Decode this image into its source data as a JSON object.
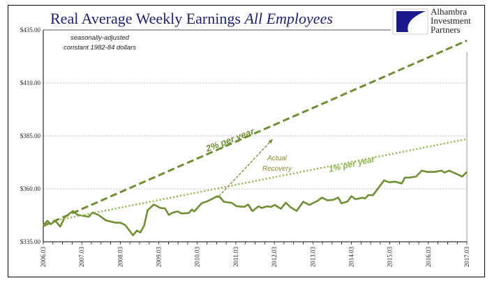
{
  "title": {
    "main": "Real Average Weekly Earnings",
    "italic": "All Employees"
  },
  "logo": {
    "lines": [
      "Alhambra",
      "Investment",
      "Partners"
    ],
    "color": "#1a1a8c"
  },
  "note": {
    "line1": "seasonally-adjusted",
    "line2": "constant 1982-84 dollars"
  },
  "chart_data": {
    "type": "line",
    "ylim": [
      335,
      435
    ],
    "xlim": [
      2006.17,
      2017.17
    ],
    "yticks": [
      "$335.00",
      "$360.00",
      "$385.00",
      "$410.00",
      "$435.00"
    ],
    "ytick_values": [
      335,
      360,
      385,
      410,
      435
    ],
    "xticks": [
      "2006.03",
      "2007.03",
      "2008.03",
      "2009.03",
      "2010.03",
      "2011.03",
      "2012.03",
      "2013.03",
      "2014.03",
      "2015.03",
      "2016.03",
      "2017.03"
    ],
    "grid": true,
    "series": [
      {
        "style": "solid",
        "color": "#6e8f32",
        "x": [
          2006.17,
          2006.28,
          2006.36,
          2006.48,
          2006.61,
          2006.73,
          2006.94,
          2007.06,
          2007.35,
          2007.45,
          2007.6,
          2007.8,
          2008.05,
          2008.17,
          2008.3,
          2008.5,
          2008.6,
          2008.69,
          2008.79,
          2008.88,
          2009.04,
          2009.21,
          2009.33,
          2009.43,
          2009.54,
          2009.66,
          2009.76,
          2009.95,
          2010.03,
          2010.09,
          2010.28,
          2010.4,
          2010.53,
          2010.69,
          2010.77,
          2010.86,
          2011.06,
          2011.19,
          2011.39,
          2011.49,
          2011.6,
          2011.76,
          2011.85,
          2011.97,
          2012.09,
          2012.18,
          2012.34,
          2012.47,
          2012.59,
          2012.75,
          2012.92,
          2013.08,
          2013.29,
          2013.41,
          2013.54,
          2013.7,
          2013.83,
          2013.91,
          2014.07,
          2014.17,
          2014.28,
          2014.45,
          2014.53,
          2014.61,
          2014.73,
          2014.86,
          2015.02,
          2015.15,
          2015.31,
          2015.48,
          2015.56,
          2015.68,
          2015.85,
          2016.0,
          2016.14,
          2016.34,
          2016.51,
          2016.59,
          2016.71,
          2016.88,
          2017.05,
          2017.17
        ],
        "y": [
          342.9,
          344.9,
          343.3,
          344.9,
          342.2,
          346.6,
          349.5,
          347.7,
          346.8,
          348.8,
          347.7,
          345.1,
          344.0,
          344.0,
          342.9,
          338.1,
          340.3,
          339.4,
          342.7,
          349.9,
          352.6,
          351.0,
          350.8,
          347.7,
          348.8,
          349.3,
          348.4,
          348.6,
          350.2,
          349.3,
          353.2,
          353.9,
          355.0,
          356.5,
          355.9,
          353.9,
          353.4,
          351.8,
          351.5,
          352.6,
          349.5,
          351.7,
          351.0,
          351.7,
          351.5,
          352.4,
          350.6,
          353.5,
          351.3,
          349.6,
          353.9,
          352.4,
          354.3,
          355.9,
          354.6,
          354.8,
          355.9,
          353.2,
          354.0,
          356.5,
          355.1,
          355.8,
          355.5,
          357.0,
          357.0,
          360.1,
          364.0,
          363.1,
          363.4,
          362.5,
          365.3,
          365.3,
          365.8,
          368.6,
          368.0,
          368.0,
          368.6,
          367.7,
          368.6,
          367.2,
          365.8,
          368.0
        ]
      },
      {
        "name": "2% per year",
        "style": "dashed",
        "color": "#6e8f32",
        "x": [
          2006.17,
          2017.17
        ],
        "y": [
          342.5,
          430.0
        ],
        "growth": 0.02
      },
      {
        "name": "1% per year",
        "style": "dotted",
        "color": "#8fb848",
        "x": [
          2006.61,
          2017.17
        ],
        "y": [
          345.5,
          383.5
        ],
        "growth": 0.01
      }
    ],
    "annotations": [
      {
        "text": "2% per year",
        "color": "#6e8f32"
      },
      {
        "text": "1% per year",
        "color": "#8fb848"
      },
      {
        "text_lines": [
          "Actual",
          "Recovery"
        ],
        "color": "#8c8c2a",
        "arrow": {
          "from": [
            2010.73,
            356.5
          ],
          "to": [
            2012.13,
            383.5
          ]
        }
      }
    ]
  }
}
